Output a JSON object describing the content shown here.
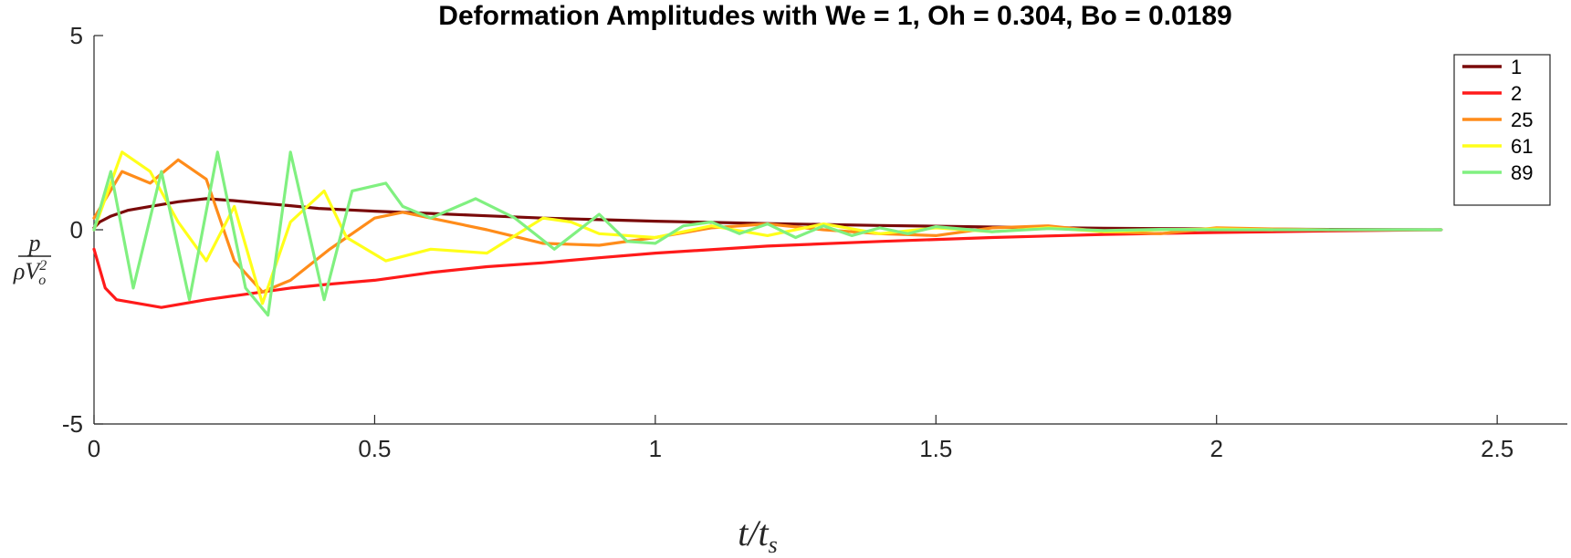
{
  "chart_data": {
    "type": "line",
    "title": "Deformation Amplitudes with We = 1, Oh = 0.304, Bo = 0.0189",
    "xlabel": "t/t_s",
    "xlabel_main": "t",
    "xlabel_sub": "s",
    "ylabel_num": "p",
    "ylabel_den_main": "ρV",
    "ylabel_den_sub": "o",
    "ylabel_den_sup": "2",
    "xlim": [
      0,
      2.625
    ],
    "ylim": [
      -5,
      5
    ],
    "x_ticks": [
      0,
      0.5,
      1,
      1.5,
      2,
      2.5
    ],
    "x_tick_labels": [
      "0",
      "0.5",
      "1",
      "1.5",
      "2",
      "2.5"
    ],
    "y_ticks": [
      -5,
      0,
      5
    ],
    "y_tick_labels": [
      "-5",
      "0",
      "5"
    ],
    "grid": false,
    "legend_position": "top-right",
    "series": [
      {
        "name": "1",
        "color": "#7a0a0a",
        "x": [
          0,
          0.01,
          0.03,
          0.06,
          0.1,
          0.15,
          0.2,
          0.25,
          0.3,
          0.35,
          0.4,
          0.5,
          0.6,
          0.7,
          0.8,
          0.9,
          1.0,
          1.2,
          1.4,
          1.6,
          1.8,
          2.0,
          2.2,
          2.4
        ],
        "y": [
          0.05,
          0.2,
          0.35,
          0.5,
          0.6,
          0.72,
          0.8,
          0.75,
          0.68,
          0.62,
          0.55,
          0.48,
          0.42,
          0.36,
          0.3,
          0.26,
          0.22,
          0.16,
          0.11,
          0.07,
          0.04,
          0.02,
          0.01,
          0.0
        ]
      },
      {
        "name": "2",
        "color": "#ff1a1a",
        "x": [
          0,
          0.02,
          0.04,
          0.08,
          0.12,
          0.16,
          0.2,
          0.25,
          0.3,
          0.35,
          0.42,
          0.5,
          0.6,
          0.7,
          0.8,
          0.9,
          1.0,
          1.2,
          1.4,
          1.6,
          1.8,
          2.0,
          2.2,
          2.4
        ],
        "y": [
          -0.5,
          -1.5,
          -1.8,
          -1.9,
          -2.0,
          -1.9,
          -1.8,
          -1.7,
          -1.6,
          -1.5,
          -1.4,
          -1.3,
          -1.1,
          -0.95,
          -0.85,
          -0.72,
          -0.6,
          -0.42,
          -0.3,
          -0.2,
          -0.12,
          -0.07,
          -0.03,
          0.0
        ]
      },
      {
        "name": "25",
        "color": "#ff8c1a",
        "x": [
          0,
          0.05,
          0.1,
          0.15,
          0.2,
          0.25,
          0.3,
          0.35,
          0.42,
          0.5,
          0.55,
          0.6,
          0.7,
          0.8,
          0.9,
          1.0,
          1.1,
          1.2,
          1.3,
          1.4,
          1.5,
          1.6,
          1.7,
          1.8,
          1.9,
          2.0,
          2.1,
          2.2
        ],
        "y": [
          0.3,
          1.5,
          1.2,
          1.8,
          1.3,
          -0.8,
          -1.6,
          -1.3,
          -0.5,
          0.3,
          0.45,
          0.3,
          0.0,
          -0.35,
          -0.4,
          -0.2,
          0.05,
          0.15,
          0.0,
          -0.1,
          -0.15,
          0.05,
          0.1,
          -0.05,
          -0.1,
          0.05,
          0.02,
          0.0
        ]
      },
      {
        "name": "61",
        "color": "#ffff1a",
        "x": [
          0,
          0.05,
          0.1,
          0.15,
          0.2,
          0.25,
          0.3,
          0.35,
          0.41,
          0.45,
          0.52,
          0.6,
          0.7,
          0.8,
          0.85,
          0.9,
          1.0,
          1.1,
          1.2,
          1.3,
          1.4,
          1.5,
          1.6,
          1.7,
          1.8,
          1.9,
          2.0,
          2.1
        ],
        "y": [
          0.0,
          2.0,
          1.5,
          0.2,
          -0.8,
          0.6,
          -1.9,
          0.2,
          1.0,
          -0.2,
          -0.8,
          -0.5,
          -0.6,
          0.3,
          0.2,
          -0.1,
          -0.2,
          0.1,
          -0.15,
          0.15,
          -0.1,
          0.05,
          -0.05,
          0.05,
          -0.05,
          0.0,
          0.02,
          0.0
        ]
      },
      {
        "name": "89",
        "color": "#80f080",
        "x": [
          0,
          0.03,
          0.07,
          0.12,
          0.17,
          0.22,
          0.27,
          0.31,
          0.35,
          0.41,
          0.46,
          0.52,
          0.55,
          0.6,
          0.68,
          0.75,
          0.82,
          0.9,
          0.95,
          1.0,
          1.05,
          1.1,
          1.15,
          1.2,
          1.25,
          1.3,
          1.35,
          1.4,
          1.45,
          1.5,
          1.6,
          1.7,
          1.8,
          1.9,
          2.0,
          2.4
        ],
        "y": [
          0.0,
          1.5,
          -1.5,
          1.5,
          -1.8,
          2.0,
          -1.5,
          -2.2,
          2.0,
          -1.8,
          1.0,
          1.2,
          0.6,
          0.3,
          0.8,
          0.3,
          -0.5,
          0.4,
          -0.3,
          -0.35,
          0.1,
          0.2,
          -0.1,
          0.15,
          -0.2,
          0.1,
          -0.15,
          0.05,
          -0.1,
          0.08,
          -0.05,
          0.03,
          -0.02,
          0.01,
          0.0,
          0.0
        ]
      }
    ]
  }
}
